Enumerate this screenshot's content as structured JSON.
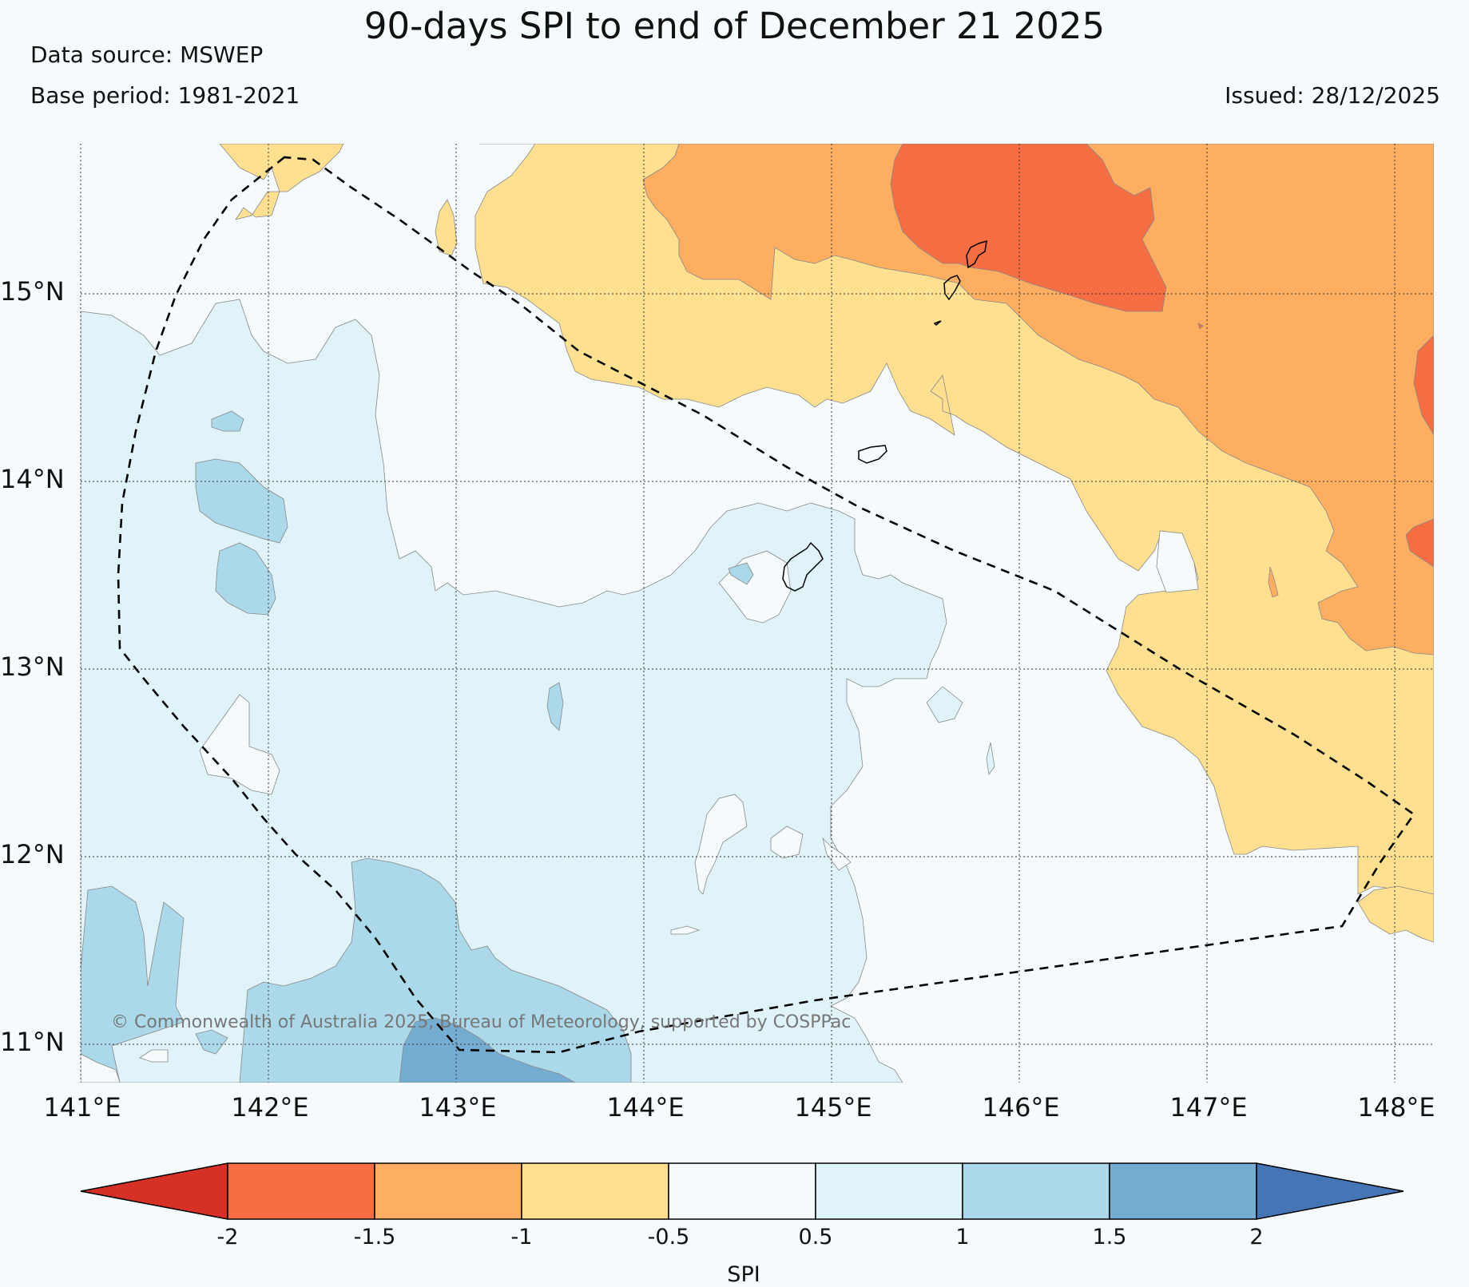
{
  "title": "90-days SPI to end of December 21 2025",
  "data_source": "Data source: MSWEP",
  "base_period": "Base period: 1981-2021",
  "issued": "Issued: 28/12/2025",
  "credit": "© Commonwealth of Australia 2025, Bureau of Meteorology, supported by COSPPac",
  "lat_labels": [
    "15°N",
    "14°N",
    "13°N",
    "12°N",
    "11°N"
  ],
  "lon_labels": [
    "141°E",
    "142°E",
    "143°E",
    "144°E",
    "145°E",
    "146°E",
    "147°E",
    "148°E"
  ],
  "colorbar": {
    "title": "SPI",
    "ticks": [
      "-2",
      "-1.5",
      "-1",
      "-0.5",
      "0.5",
      "1",
      "1.5",
      "2"
    ],
    "colors": {
      "extreme_dry": "#d73027",
      "severe_dry": "#f46d43",
      "moderate_dry": "#fdae61",
      "mild_dry": "#fee090",
      "near_normal": "#f5fbfd",
      "mild_wet": "#e0f3f8",
      "moderate_wet": "#abd9e9",
      "severe_wet": "#74add1",
      "extreme_wet": "#4575b4"
    }
  }
}
